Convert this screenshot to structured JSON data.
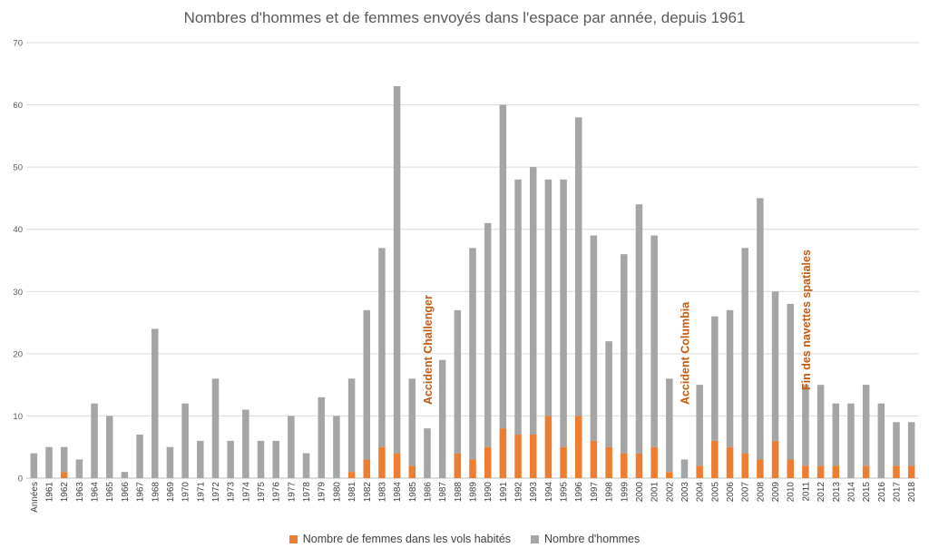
{
  "chart_data": {
    "type": "bar",
    "stacked": true,
    "title": "Nombres d'hommes et de femmes envoyés dans l'espace par année, depuis 1961",
    "xlabel": "",
    "ylabel": "",
    "ylim": [
      0,
      70
    ],
    "yticks": [
      0,
      10,
      20,
      30,
      40,
      50,
      60,
      70
    ],
    "grid": true,
    "legend_position": "bottom",
    "categories": [
      "Années",
      "1961",
      "1962",
      "1963",
      "1964",
      "1965",
      "1966",
      "1967",
      "1968",
      "1969",
      "1970",
      "1971",
      "1972",
      "1973",
      "1974",
      "1975",
      "1976",
      "1977",
      "1978",
      "1979",
      "1980",
      "1981",
      "1982",
      "1983",
      "1984",
      "1985",
      "1986",
      "1987",
      "1988",
      "1989",
      "1990",
      "1991",
      "1992",
      "1993",
      "1994",
      "1995",
      "1996",
      "1997",
      "1998",
      "1999",
      "2000",
      "2001",
      "2002",
      "2003",
      "2004",
      "2005",
      "2006",
      "2007",
      "2008",
      "2009",
      "2010",
      "2011",
      "2012",
      "2013",
      "2014",
      "2015",
      "2016",
      "2017",
      "2018"
    ],
    "series": [
      {
        "name": "Nombre de femmes dans les vols habités",
        "color": "#ED7D31",
        "values": [
          0,
          0,
          1,
          0,
          0,
          0,
          0,
          0,
          0,
          0,
          0,
          0,
          0,
          0,
          0,
          0,
          0,
          0,
          0,
          0,
          0,
          1,
          3,
          5,
          4,
          2,
          0,
          0,
          4,
          3,
          5,
          8,
          7,
          7,
          10,
          5,
          10,
          6,
          5,
          4,
          4,
          5,
          1,
          0,
          2,
          6,
          5,
          4,
          3,
          6,
          3,
          2,
          2,
          2,
          0,
          2,
          0,
          2,
          2
        ]
      },
      {
        "name": "Nombre d'hommes",
        "color": "#A5A5A5",
        "values": [
          4,
          5,
          4,
          3,
          12,
          10,
          1,
          7,
          24,
          5,
          12,
          6,
          16,
          6,
          11,
          6,
          6,
          10,
          4,
          13,
          10,
          15,
          24,
          32,
          59,
          14,
          8,
          19,
          23,
          34,
          36,
          52,
          41,
          43,
          38,
          43,
          48,
          33,
          17,
          32,
          40,
          34,
          15,
          3,
          13,
          20,
          22,
          33,
          42,
          24,
          25,
          13,
          13,
          10,
          12,
          13,
          12,
          7,
          7
        ]
      }
    ],
    "annotations": [
      {
        "text": "Accident Challenger",
        "category": "1986",
        "color": "#C55A11"
      },
      {
        "text": "Accident Columbia",
        "category": "2003",
        "color": "#C55A11"
      },
      {
        "text": "Fin des navettes spatiales",
        "category": "2011",
        "color": "#C55A11"
      }
    ]
  }
}
